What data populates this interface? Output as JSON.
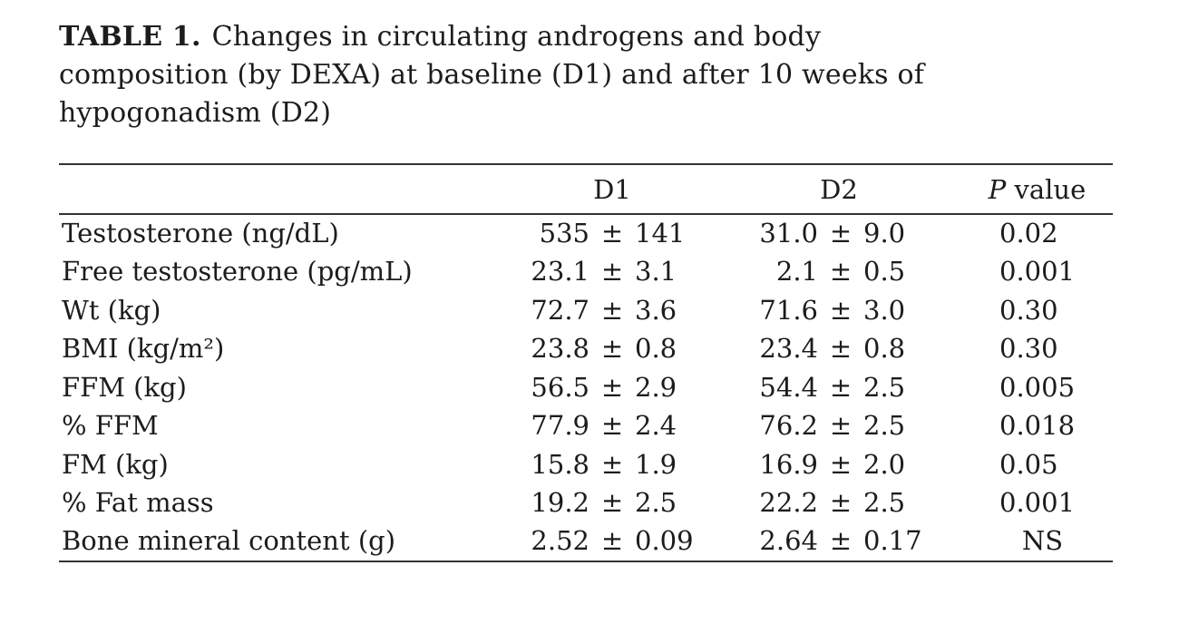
{
  "caption": {
    "label": "TABLE 1.",
    "line1": "Changes in circulating androgens and body",
    "line2": "composition (by DEXA) at baseline (D1) and after 10 weeks of",
    "line3": "hypogonadism (D2)"
  },
  "table": {
    "pm_symbol": "±",
    "headers": {
      "metric": "",
      "d1": "D1",
      "d2": "D2",
      "p_italic": "P",
      "p_rest": " value"
    },
    "rows": [
      {
        "label": "Testosterone (ng/dL)",
        "d1": {
          "mean": "535",
          "sd": "141"
        },
        "d2": {
          "mean": "31.0",
          "sd": "9.0"
        },
        "p": "0.02"
      },
      {
        "label": "Free testosterone (pg/mL)",
        "d1": {
          "mean": "23.1",
          "sd": "3.1"
        },
        "d2": {
          "mean": "2.1",
          "sd": "0.5"
        },
        "p": "0.001"
      },
      {
        "label": "Wt (kg)",
        "d1": {
          "mean": "72.7",
          "sd": "3.6"
        },
        "d2": {
          "mean": "71.6",
          "sd": "3.0"
        },
        "p": "0.30"
      },
      {
        "label": "BMI (kg/m²)",
        "d1": {
          "mean": "23.8",
          "sd": "0.8"
        },
        "d2": {
          "mean": "23.4",
          "sd": "0.8"
        },
        "p": "0.30"
      },
      {
        "label": "FFM (kg)",
        "d1": {
          "mean": "56.5",
          "sd": "2.9"
        },
        "d2": {
          "mean": "54.4",
          "sd": "2.5"
        },
        "p": "0.005"
      },
      {
        "label": "% FFM",
        "d1": {
          "mean": "77.9",
          "sd": "2.4"
        },
        "d2": {
          "mean": "76.2",
          "sd": "2.5"
        },
        "p": "0.018"
      },
      {
        "label": "FM (kg)",
        "d1": {
          "mean": "15.8",
          "sd": "1.9"
        },
        "d2": {
          "mean": "16.9",
          "sd": "2.0"
        },
        "p": "0.05"
      },
      {
        "label": "% Fat mass",
        "d1": {
          "mean": "19.2",
          "sd": "2.5"
        },
        "d2": {
          "mean": "22.2",
          "sd": "2.5"
        },
        "p": "0.001"
      },
      {
        "label": "Bone mineral content (g)",
        "d1": {
          "mean": "2.52",
          "sd": "0.09"
        },
        "d2": {
          "mean": "2.64",
          "sd": "0.17"
        },
        "p": "NS"
      }
    ]
  },
  "colors": {
    "background": "#ffffff",
    "text": "#1c1c1c",
    "rule": "#333333"
  }
}
